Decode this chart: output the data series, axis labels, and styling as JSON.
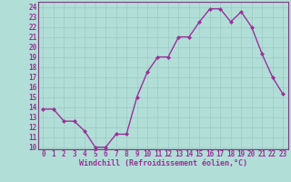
{
  "x": [
    0,
    1,
    2,
    3,
    4,
    5,
    6,
    7,
    8,
    9,
    10,
    11,
    12,
    13,
    14,
    15,
    16,
    17,
    18,
    19,
    20,
    21,
    22,
    23
  ],
  "y": [
    13.8,
    13.8,
    12.6,
    12.6,
    11.6,
    10.0,
    10.0,
    11.3,
    11.3,
    15.0,
    17.5,
    19.0,
    19.0,
    21.0,
    21.0,
    22.5,
    23.8,
    23.8,
    22.5,
    23.5,
    22.0,
    19.3,
    17.0,
    15.3
  ],
  "line_color": "#993399",
  "marker": "D",
  "marker_size": 2.0,
  "bg_color": "#b2ded8",
  "grid_color": "#9ec8c4",
  "xlabel": "Windchill (Refroidissement éolien,°C)",
  "xlim": [
    -0.5,
    23.5
  ],
  "ylim": [
    9.8,
    24.5
  ],
  "xticks": [
    0,
    1,
    2,
    3,
    4,
    5,
    6,
    7,
    8,
    9,
    10,
    11,
    12,
    13,
    14,
    15,
    16,
    17,
    18,
    19,
    20,
    21,
    22,
    23
  ],
  "yticks": [
    10,
    11,
    12,
    13,
    14,
    15,
    16,
    17,
    18,
    19,
    20,
    21,
    22,
    23,
    24
  ],
  "xlabel_fontsize": 6.0,
  "tick_fontsize": 5.5,
  "linewidth": 1.0,
  "spine_color": "#7a3b7a"
}
